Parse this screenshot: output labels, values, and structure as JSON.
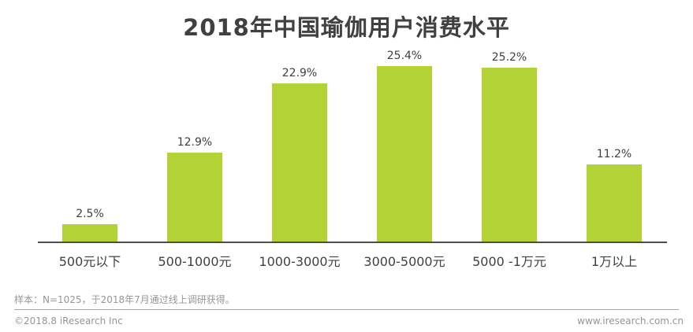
{
  "title": "2018年中国瑜伽用户消费水平",
  "chart_data": {
    "type": "bar",
    "title": "2018年中国瑜伽用户消费水平",
    "categories": [
      "500元以下",
      "500-1000元",
      "1000-3000元",
      "3000-5000元",
      "5000 -1万元",
      "1万以上"
    ],
    "values": [
      2.5,
      12.9,
      22.9,
      25.4,
      25.2,
      11.2
    ],
    "value_labels": [
      "2.5%",
      "12.9%",
      "22.9%",
      "25.4%",
      "25.2%",
      "11.2%"
    ],
    "unit": "percent",
    "xlabel": "",
    "ylabel": "",
    "ylim": [
      0,
      28
    ],
    "grid": false,
    "legend": "none",
    "y_axis_visible": false,
    "bar_color": "#b2d235"
  },
  "colors": {
    "bar": "#b2d235",
    "title_text": "#404040",
    "label_text": "#404040",
    "axis_line": "#4d4d4d",
    "footer_text": "#969696",
    "separator": "#a6a6a6"
  },
  "footer": {
    "sample_note": "样本：N=1025，于2018年7月通过线上调研获得。",
    "copyright": "©2018.8 iResearch Inc",
    "website": "www.iresearch.com.cn"
  }
}
